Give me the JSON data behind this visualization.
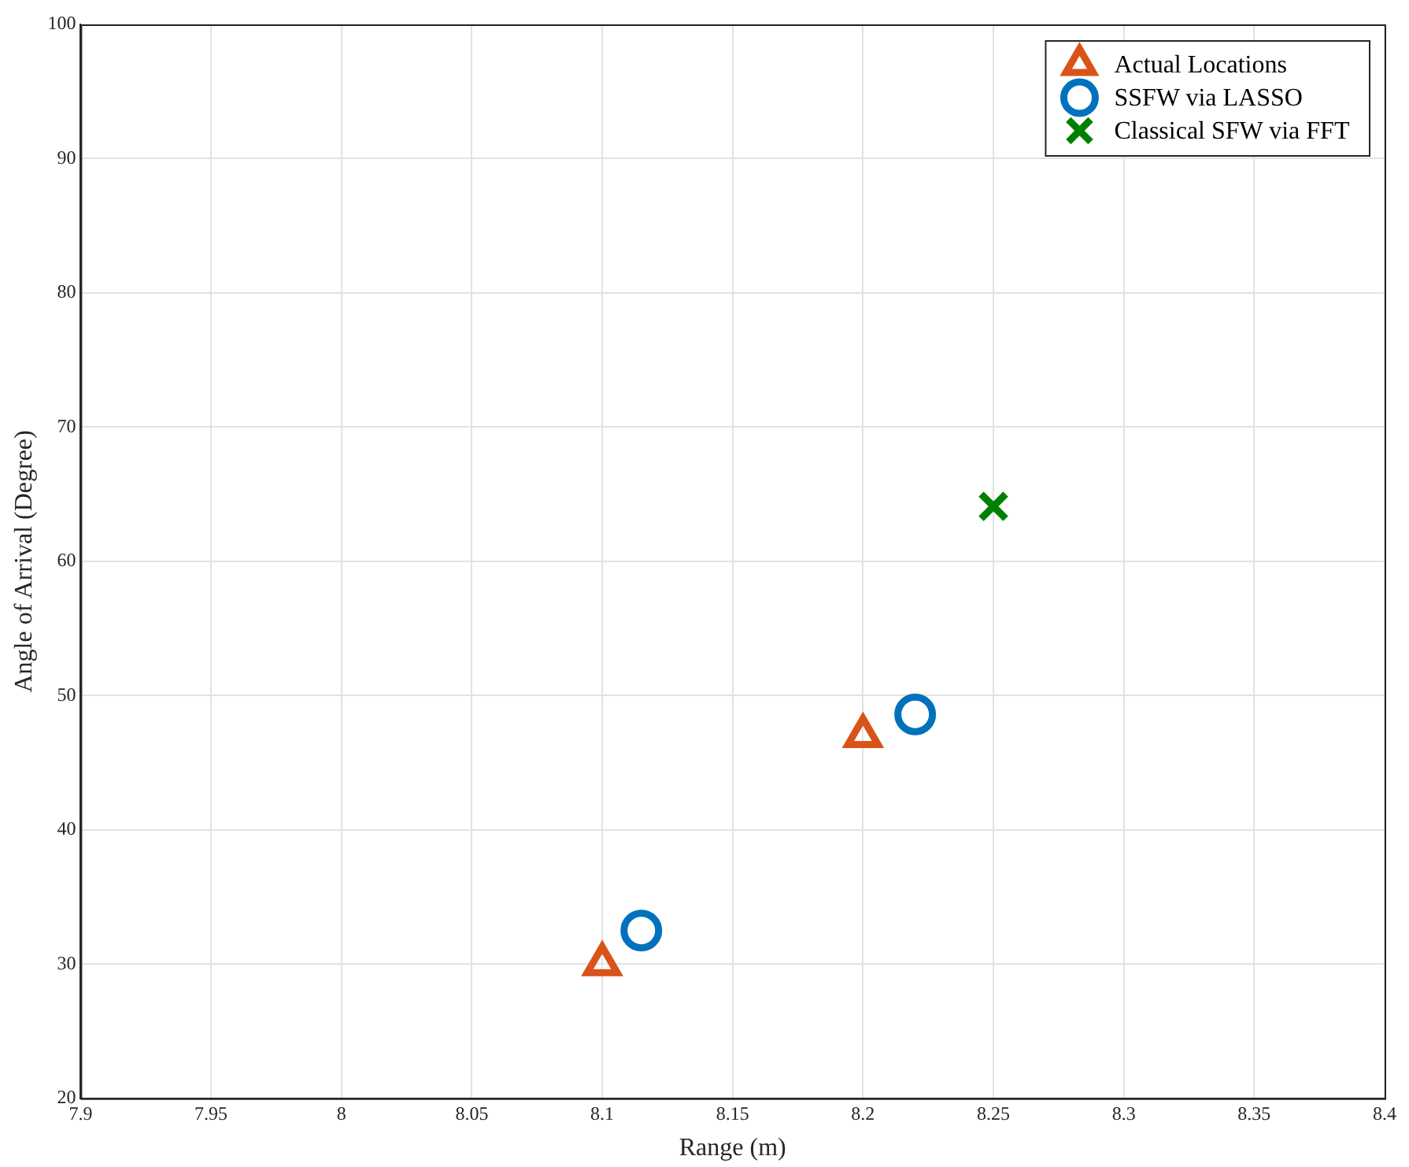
{
  "chart_data": {
    "type": "scatter",
    "xlabel": "Range (m)",
    "ylabel": "Angle of Arrival (Degree)",
    "xlim": [
      7.9,
      8.4
    ],
    "xticks": [
      7.9,
      7.95,
      8,
      8.05,
      8.1,
      8.15,
      8.2,
      8.25,
      8.3,
      8.35,
      8.4
    ],
    "ylim": [
      20,
      100
    ],
    "yticks": [
      20,
      30,
      40,
      50,
      60,
      70,
      80,
      90,
      100
    ],
    "grid": true,
    "legend": "top right",
    "series": [
      {
        "name": "Actual Locations",
        "color": "#d95319",
        "marker": "triangle",
        "x": [
          8.1,
          8.2
        ],
        "values": [
          30,
          47
        ]
      },
      {
        "name": "SSFW via LASSO",
        "color": "#0072bd",
        "marker": "circle",
        "x": [
          8.115,
          8.22
        ],
        "values": [
          32.5,
          48.6
        ]
      },
      {
        "name": "Classical SFW via FFT",
        "color": "#008000",
        "marker": "cross",
        "x": [
          8.25
        ],
        "values": [
          64.1
        ]
      }
    ]
  }
}
